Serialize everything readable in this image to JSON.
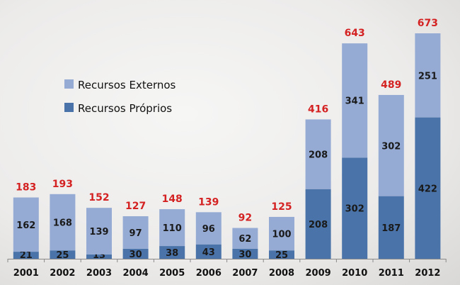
{
  "chart_data": {
    "type": "bar",
    "stacked": true,
    "categories": [
      "2001",
      "2002",
      "2003",
      "2004",
      "2005",
      "2006",
      "2007",
      "2008",
      "2009",
      "2010",
      "2011",
      "2012"
    ],
    "series": [
      {
        "name": "Recursos Próprios",
        "color": "#4a74a9",
        "values": [
          21,
          25,
          13,
          30,
          38,
          43,
          30,
          25,
          208,
          302,
          187,
          422
        ]
      },
      {
        "name": "Recursos Externos",
        "color": "#95abd4",
        "values": [
          162,
          168,
          139,
          97,
          110,
          96,
          62,
          100,
          208,
          341,
          302,
          251
        ]
      }
    ],
    "totals": [
      183,
      193,
      152,
      127,
      148,
      139,
      92,
      125,
      416,
      643,
      489,
      673
    ],
    "total_label_color": "#d42222",
    "legend": {
      "placement": "upper-left",
      "entries": [
        "Recursos Externos",
        "Recursos Próprios"
      ]
    },
    "ylim": [
      0,
      673
    ],
    "grid": false,
    "y_axis_visible": false
  }
}
